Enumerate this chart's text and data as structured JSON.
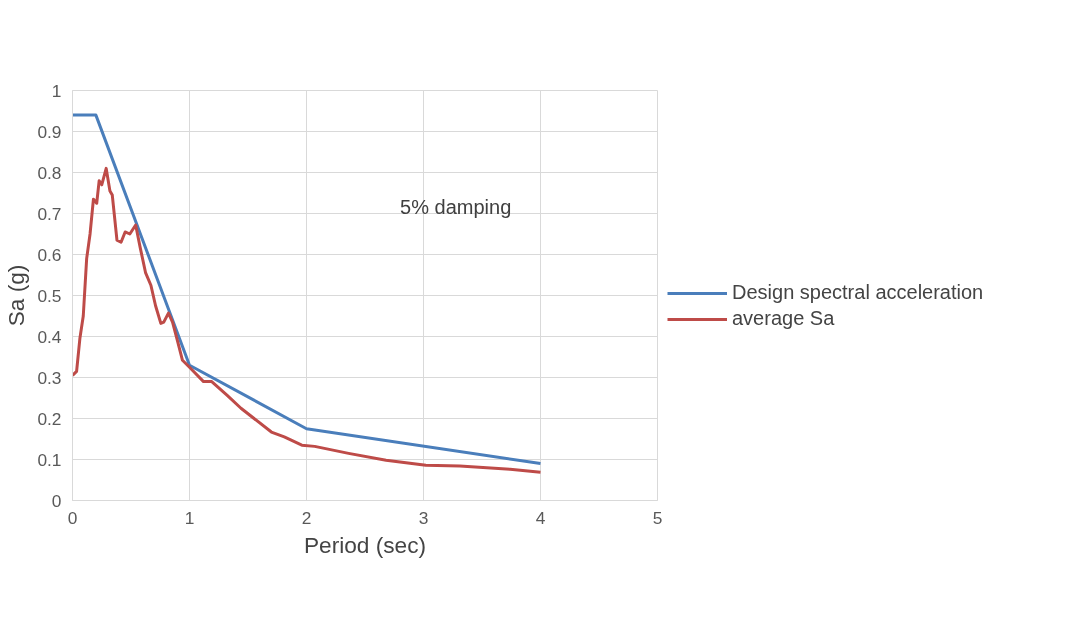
{
  "chart_data": {
    "type": "line",
    "xlabel": "Period (sec)",
    "ylabel": "Sa (g)",
    "xlim": [
      0,
      5
    ],
    "ylim": [
      0,
      1
    ],
    "xticks": [
      0,
      1,
      2,
      3,
      4,
      5
    ],
    "yticks": [
      0,
      0.1,
      0.2,
      0.3,
      0.4,
      0.5,
      0.6,
      0.7,
      0.8,
      0.9,
      1
    ],
    "grid": true,
    "legend": "right",
    "marker": "none",
    "line_style": "solid",
    "annotations": [
      "5% damping"
    ],
    "series": [
      {
        "name": "Design spectral acceleration",
        "color": "#4a7ebb",
        "x": [
          0,
          0.2,
          1,
          2,
          4
        ],
        "values": [
          0.94,
          0.94,
          0.33,
          0.175,
          0.09
        ]
      },
      {
        "name": "average Sa",
        "color": "#be4b48",
        "x": [
          0,
          0.035,
          0.063,
          0.092,
          0.121,
          0.15,
          0.179,
          0.207,
          0.228,
          0.25,
          0.288,
          0.32,
          0.34,
          0.38,
          0.415,
          0.45,
          0.49,
          0.54,
          0.58,
          0.625,
          0.67,
          0.71,
          0.755,
          0.78,
          0.82,
          0.855,
          0.9,
          0.94,
          1.0,
          1.12,
          1.19,
          1.32,
          1.44,
          1.7,
          1.81,
          1.96,
          2.07,
          2.36,
          2.68,
          3.02,
          3.31,
          3.74,
          4.0
        ],
        "values": [
          0.305,
          0.315,
          0.395,
          0.45,
          0.59,
          0.65,
          0.735,
          0.725,
          0.78,
          0.77,
          0.81,
          0.755,
          0.745,
          0.635,
          0.63,
          0.655,
          0.65,
          0.672,
          0.615,
          0.555,
          0.525,
          0.475,
          0.432,
          0.435,
          0.457,
          0.435,
          0.386,
          0.342,
          0.325,
          0.29,
          0.29,
          0.257,
          0.225,
          0.167,
          0.155,
          0.135,
          0.132,
          0.115,
          0.098,
          0.086,
          0.084,
          0.076,
          0.069
        ]
      }
    ]
  }
}
